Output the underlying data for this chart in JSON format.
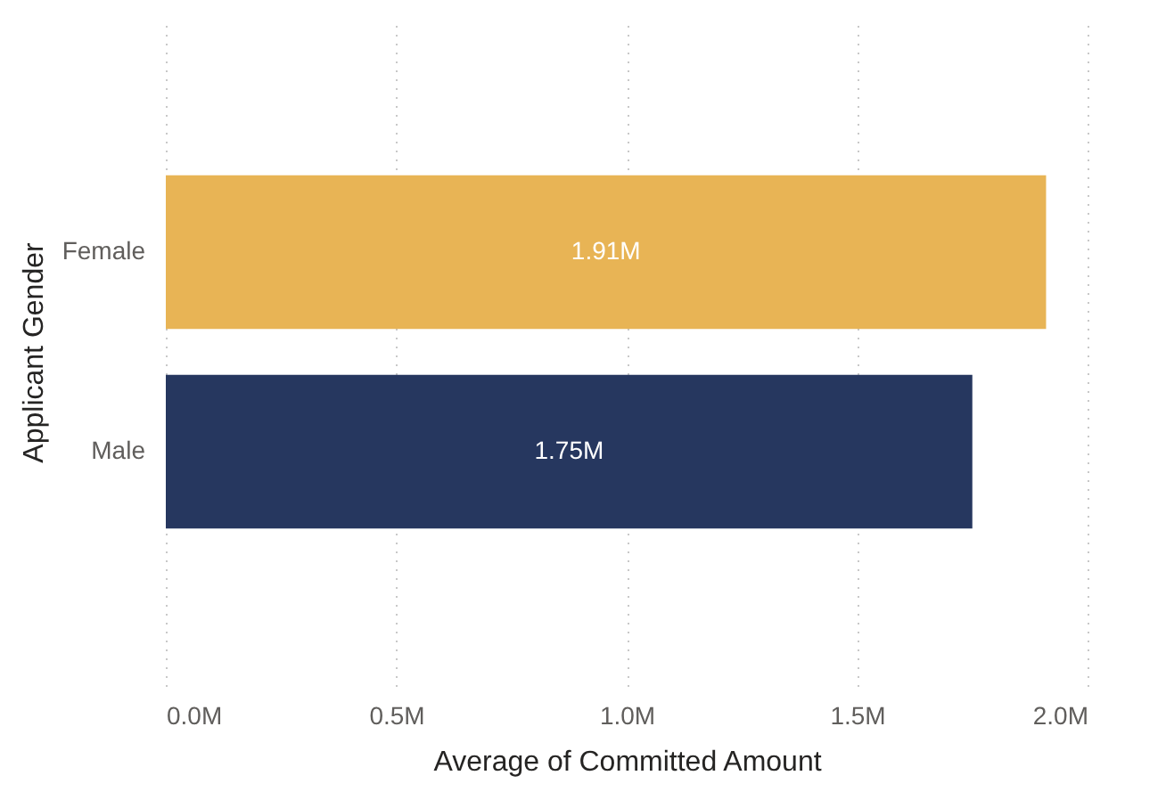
{
  "chart_data": {
    "type": "bar",
    "orientation": "horizontal",
    "xlabel": "Average of Committed Amount",
    "ylabel": "Applicant Gender",
    "categories": [
      "Female",
      "Male"
    ],
    "values": [
      1.91,
      1.75
    ],
    "colors": [
      "#e8b455",
      "#26375f"
    ],
    "value_labels": [
      "1.91M",
      "1.75M"
    ],
    "xlim": [
      0,
      2
    ],
    "xticks": [
      {
        "value": 0,
        "label": "0.0M"
      },
      {
        "value": 0.5,
        "label": "0.5M"
      },
      {
        "value": 1,
        "label": "1.0M"
      },
      {
        "value": 1.5,
        "label": "1.5M"
      },
      {
        "value": 2,
        "label": "2.0M"
      }
    ],
    "grid": "x"
  }
}
